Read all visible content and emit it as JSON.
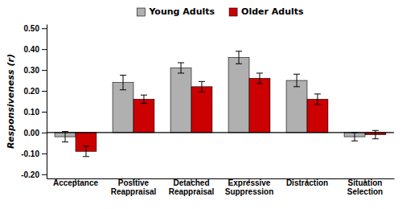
{
  "chart_data": {
    "type": "bar",
    "categories": [
      "Acceptance",
      "Positive\nReappraisal",
      "Detached\nReappraisal",
      "Expressive\nSuppression",
      "Distraction",
      "Situation\nSelection"
    ],
    "series": [
      {
        "name": "Young Adults",
        "color": "#b0b0b0",
        "values": [
          -0.02,
          0.24,
          0.31,
          0.36,
          0.25,
          -0.02
        ],
        "errors": [
          0.025,
          0.035,
          0.025,
          0.03,
          0.03,
          0.02
        ]
      },
      {
        "name": "Older Adults",
        "color": "#cc0000",
        "values": [
          -0.09,
          0.16,
          0.22,
          0.26,
          0.16,
          -0.01
        ],
        "errors": [
          0.025,
          0.02,
          0.025,
          0.025,
          0.025,
          0.02
        ]
      }
    ],
    "ylabel": "Responsiveness (r)",
    "ylim": [
      -0.22,
      0.52
    ],
    "yticks": [
      {
        "value": -0.2,
        "label": "-0.20"
      },
      {
        "value": -0.1,
        "label": "-0.10"
      },
      {
        "value": 0.0,
        "label": "0.00"
      },
      {
        "value": 0.1,
        "label": "0.10"
      },
      {
        "value": 0.2,
        "label": "0.20"
      },
      {
        "value": 0.3,
        "label": "0.30"
      },
      {
        "value": 0.4,
        "label": "0.40"
      },
      {
        "value": 0.5,
        "label": "0.50"
      }
    ],
    "legend": "top",
    "grid": false
  }
}
